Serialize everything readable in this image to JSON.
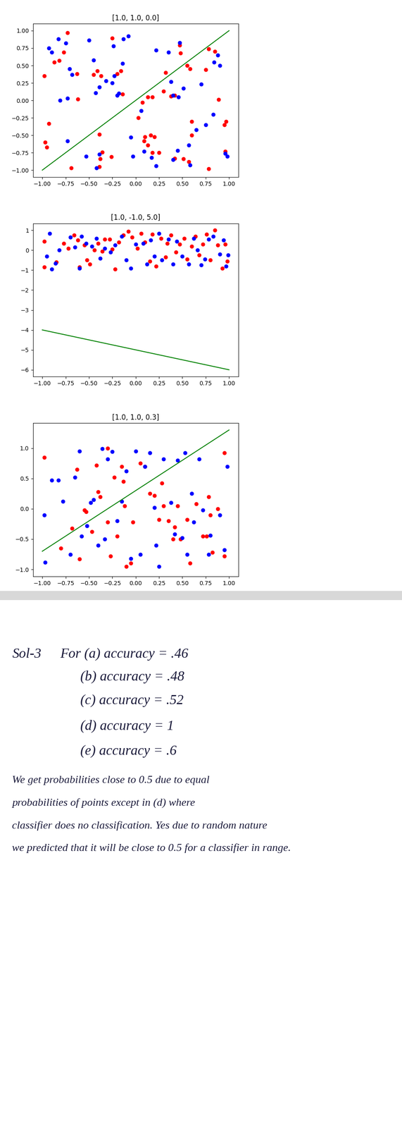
{
  "chart_data": [
    {
      "type": "scatter",
      "title": "[1.0, 1.0, 0.0]",
      "xlim": [
        -1.1,
        1.1
      ],
      "ylim": [
        -1.1,
        1.1
      ],
      "xticks": [
        {
          "value": -1,
          "label": "−1.00"
        },
        {
          "value": -0.75,
          "label": "−0.75"
        },
        {
          "value": -0.5,
          "label": "−0.50"
        },
        {
          "value": -0.25,
          "label": "−0.25"
        },
        {
          "value": 0,
          "label": "0.00"
        },
        {
          "value": 0.25,
          "label": "0.25"
        },
        {
          "value": 0.5,
          "label": "0.50"
        },
        {
          "value": 0.75,
          "label": "0.75"
        },
        {
          "value": 1,
          "label": "1.00"
        }
      ],
      "yticks": [
        {
          "value": -1,
          "label": "−1.00"
        },
        {
          "value": -0.75,
          "label": "−0.75"
        },
        {
          "value": -0.5,
          "label": "−0.50"
        },
        {
          "value": -0.25,
          "label": "−0.25"
        },
        {
          "value": 0,
          "label": "0.00"
        },
        {
          "value": 0.25,
          "label": "0.25"
        },
        {
          "value": 0.5,
          "label": "0.50"
        },
        {
          "value": 0.75,
          "label": "0.75"
        },
        {
          "value": 1,
          "label": "1.00"
        }
      ],
      "series": [
        {
          "type": "scatter",
          "color": "red",
          "marker": "circle",
          "x": [
            -0.98,
            -0.73,
            -0.77,
            -0.82,
            -0.87,
            -0.93,
            -0.97,
            -0.95,
            -0.69,
            -0.62,
            -0.63,
            -0.45,
            -0.41,
            -0.37,
            -0.2,
            -0.25,
            -0.16,
            -0.14,
            -0.39,
            -0.36,
            -0.38,
            -0.39,
            -0.26,
            0.03,
            0.07,
            0.1,
            0.09,
            0.13,
            0.16,
            0.2,
            0.18,
            0.25,
            0.13,
            0.18,
            0.32,
            0.3,
            0.38,
            0.42,
            0.47,
            0.48,
            0.55,
            0.58,
            0.42,
            0.51,
            0.57,
            0.6,
            0.6,
            0.78,
            0.85,
            0.75,
            0.89,
            0.95,
            0.97,
            0.96,
            0.78
          ],
          "values": [
            0.35,
            0.97,
            0.69,
            0.57,
            0.55,
            -0.33,
            -0.6,
            -0.67,
            -0.97,
            0.02,
            0.38,
            0.37,
            0.42,
            0.35,
            0.38,
            0.89,
            0.42,
            0.09,
            -0.49,
            -0.74,
            -0.84,
            -0.95,
            -0.81,
            -0.25,
            -0.03,
            -0.52,
            -0.58,
            -0.64,
            -0.5,
            -0.52,
            -0.75,
            -0.75,
            0.05,
            0.05,
            0.4,
            0.13,
            0.06,
            0.07,
            0.79,
            0.68,
            0.5,
            0.45,
            -0.83,
            -0.84,
            -0.88,
            -0.3,
            -0.5,
            0.74,
            0.7,
            0.44,
            0.01,
            -0.35,
            -0.3,
            -0.73,
            -0.98
          ]
        },
        {
          "type": "scatter",
          "color": "blue",
          "marker": "circle",
          "x": [
            -0.93,
            -0.9,
            -0.83,
            -0.75,
            -0.81,
            -0.73,
            -0.71,
            -0.68,
            -0.73,
            -0.5,
            -0.45,
            -0.43,
            -0.39,
            -0.32,
            -0.25,
            -0.23,
            -0.2,
            -0.18,
            -0.14,
            -0.13,
            -0.08,
            -0.24,
            -0.53,
            -0.39,
            -0.42,
            -0.05,
            -0.03,
            0.06,
            0.09,
            0.17,
            0.22,
            0.22,
            0.35,
            0.38,
            0.4,
            0.47,
            0.46,
            0.51,
            0.45,
            0.4,
            0.58,
            0.57,
            0.65,
            0.7,
            0.75,
            0.83,
            0.84,
            0.88,
            0.9,
            0.96,
            0.98
          ],
          "values": [
            0.75,
            0.69,
            0.88,
            0.82,
            0.0,
            0.03,
            0.45,
            0.37,
            -0.58,
            0.86,
            0.58,
            0.11,
            0.19,
            0.28,
            0.25,
            0.35,
            0.07,
            0.1,
            0.53,
            0.88,
            0.92,
            0.78,
            -0.8,
            -0.77,
            -0.97,
            -0.53,
            -0.8,
            -0.15,
            -0.73,
            -0.82,
            -0.94,
            0.72,
            0.69,
            0.27,
            0.07,
            0.83,
            0.05,
            0.17,
            -0.72,
            -0.85,
            -0.93,
            -0.64,
            -0.42,
            0.23,
            -0.35,
            -0.2,
            0.55,
            0.65,
            0.5,
            -0.76,
            -0.8
          ]
        },
        {
          "type": "line",
          "color": "green",
          "x": [
            -1,
            1
          ],
          "values": [
            -1,
            1
          ]
        }
      ]
    },
    {
      "type": "scatter",
      "title": "[1.0, -1.0, 5.0]",
      "xlim": [
        -1.1,
        1.1
      ],
      "ylim": [
        -6.35,
        1.35
      ],
      "xticks": [
        {
          "value": -1,
          "label": "−1.00"
        },
        {
          "value": -0.75,
          "label": "−0.75"
        },
        {
          "value": -0.5,
          "label": "−0.50"
        },
        {
          "value": -0.25,
          "label": "−0.25"
        },
        {
          "value": 0,
          "label": "0.00"
        },
        {
          "value": 0.25,
          "label": "0.25"
        },
        {
          "value": 0.5,
          "label": "0.50"
        },
        {
          "value": 0.75,
          "label": "0.75"
        },
        {
          "value": 1,
          "label": "1.00"
        }
      ],
      "yticks": [
        {
          "value": -6,
          "label": "−6"
        },
        {
          "value": -5,
          "label": "−5"
        },
        {
          "value": -4,
          "label": "−4"
        },
        {
          "value": -3,
          "label": "−3"
        },
        {
          "value": -2,
          "label": "−2"
        },
        {
          "value": -1,
          "label": "−1"
        },
        0,
        1
      ],
      "series": [
        {
          "type": "scatter",
          "color": "red",
          "marker": "circle",
          "x": [
            -0.98,
            -0.98,
            -0.85,
            -0.77,
            -0.72,
            -0.66,
            -0.62,
            -0.6,
            -0.55,
            -0.52,
            -0.49,
            -0.44,
            -0.4,
            -0.36,
            -0.33,
            -0.28,
            -0.25,
            -0.22,
            -0.18,
            -0.13,
            -0.08,
            -0.04,
            0.02,
            0.06,
            0.1,
            0.15,
            0.18,
            0.22,
            0.27,
            0.32,
            0.34,
            0.38,
            0.43,
            0.47,
            0.52,
            0.55,
            0.6,
            0.64,
            0.68,
            0.72,
            0.76,
            0.8,
            0.85,
            0.88,
            0.93,
            0.96,
            0.98
          ],
          "values": [
            0.45,
            -0.85,
            -0.6,
            0.35,
            0.1,
            0.75,
            0.5,
            -0.85,
            0.25,
            -0.5,
            -0.7,
            0.0,
            0.35,
            -0.05,
            0.55,
            0.55,
            0.05,
            -0.95,
            0.4,
            0.75,
            0.95,
            0.65,
            0.1,
            0.85,
            0.4,
            -0.55,
            0.8,
            -0.8,
            0.6,
            -0.35,
            0.35,
            0.75,
            -0.1,
            0.3,
            0.6,
            -0.45,
            0.2,
            0.7,
            -0.25,
            0.3,
            0.8,
            -0.5,
            1.0,
            0.25,
            -0.9,
            0.3,
            -0.55
          ]
        },
        {
          "type": "scatter",
          "color": "blue",
          "marker": "circle",
          "x": [
            -0.95,
            -0.92,
            -0.9,
            -0.86,
            -0.82,
            -0.7,
            -0.65,
            -0.6,
            -0.58,
            -0.53,
            -0.47,
            -0.42,
            -0.38,
            -0.33,
            -0.27,
            -0.22,
            -0.15,
            -0.1,
            -0.05,
            0.0,
            0.08,
            0.12,
            0.16,
            0.2,
            0.25,
            0.28,
            0.35,
            0.4,
            0.44,
            0.5,
            0.57,
            0.62,
            0.66,
            0.7,
            0.74,
            0.78,
            0.83,
            0.9,
            0.94,
            0.97,
            0.99
          ],
          "values": [
            -0.3,
            0.85,
            -0.95,
            -0.65,
            0.0,
            0.65,
            0.15,
            -0.9,
            0.7,
            0.35,
            0.2,
            0.6,
            -0.4,
            0.1,
            -0.1,
            0.25,
            0.7,
            -0.5,
            -0.9,
            0.3,
            0.35,
            -0.7,
            0.5,
            -0.3,
            0.85,
            -0.5,
            0.55,
            -0.7,
            0.45,
            -0.3,
            -0.7,
            0.6,
            0.0,
            -0.75,
            -0.45,
            0.55,
            0.7,
            -0.2,
            0.5,
            -0.8,
            -0.25
          ]
        },
        {
          "type": "line",
          "color": "green",
          "x": [
            -1,
            1
          ],
          "values": [
            -4,
            -6
          ]
        }
      ]
    },
    {
      "type": "scatter",
      "title": "[1.0, 1.0, 0.3]",
      "xlim": [
        -1.1,
        1.1
      ],
      "ylim": [
        -1.115,
        1.415
      ],
      "xticks": [
        {
          "value": -1,
          "label": "−1.00"
        },
        {
          "value": -0.75,
          "label": "−0.75"
        },
        {
          "value": -0.5,
          "label": "−0.50"
        },
        {
          "value": -0.25,
          "label": "−0.25"
        },
        {
          "value": 0,
          "label": "0.00"
        },
        {
          "value": 0.25,
          "label": "0.25"
        },
        {
          "value": 0.5,
          "label": "0.50"
        },
        {
          "value": 0.75,
          "label": "0.75"
        },
        {
          "value": 1,
          "label": "1.00"
        }
      ],
      "yticks": [
        {
          "value": -1,
          "label": "−1.0"
        },
        {
          "value": -0.5,
          "label": "−0.5"
        },
        {
          "value": 0,
          "label": "0.0"
        },
        {
          "value": 0.5,
          "label": "0.5"
        },
        {
          "value": 1,
          "label": "1.0"
        }
      ],
      "series": [
        {
          "type": "scatter",
          "color": "red",
          "marker": "circle",
          "x": [
            -0.98,
            -0.8,
            -0.68,
            -0.63,
            -0.6,
            -0.55,
            -0.53,
            -0.47,
            -0.42,
            -0.4,
            -0.38,
            -0.3,
            -0.3,
            -0.27,
            -0.23,
            -0.2,
            -0.15,
            -0.13,
            -0.12,
            -0.1,
            -0.05,
            -0.03,
            0.05,
            0.1,
            0.15,
            0.2,
            0.25,
            0.28,
            0.3,
            0.35,
            0.4,
            0.42,
            0.45,
            0.48,
            0.55,
            0.58,
            0.65,
            0.72,
            0.76,
            0.78,
            0.8,
            0.82,
            0.88,
            0.95,
            0.95
          ],
          "values": [
            0.85,
            -0.65,
            -0.32,
            0.65,
            -0.83,
            -0.02,
            -0.05,
            -0.38,
            0.72,
            0.28,
            0.2,
            1.0,
            -0.22,
            -0.78,
            0.52,
            -0.45,
            0.7,
            0.45,
            0.05,
            -0.95,
            -0.9,
            -0.22,
            0.75,
            0.7,
            0.25,
            0.22,
            -0.18,
            0.42,
            0.05,
            -0.2,
            -0.5,
            -0.3,
            0.05,
            -0.5,
            -0.18,
            -0.9,
            0.08,
            -0.45,
            -0.45,
            0.2,
            -0.1,
            -0.72,
            0.0,
            0.92,
            -0.78
          ]
        },
        {
          "type": "scatter",
          "color": "blue",
          "marker": "circle",
          "x": [
            -0.98,
            -0.97,
            -0.9,
            -0.83,
            -0.78,
            -0.7,
            -0.65,
            -0.6,
            -0.58,
            -0.52,
            -0.48,
            -0.45,
            -0.4,
            -0.36,
            -0.33,
            -0.3,
            -0.25,
            -0.2,
            -0.15,
            -0.1,
            -0.05,
            0.0,
            0.05,
            0.1,
            0.15,
            0.2,
            0.22,
            0.25,
            0.3,
            0.38,
            0.42,
            0.45,
            0.5,
            0.53,
            0.55,
            0.6,
            0.62,
            0.68,
            0.72,
            0.78,
            0.8,
            0.9,
            0.95,
            0.98
          ],
          "values": [
            -0.1,
            -0.88,
            0.47,
            0.47,
            0.12,
            -0.75,
            0.52,
            0.95,
            -0.45,
            -0.28,
            0.1,
            0.15,
            -0.6,
            0.99,
            -0.5,
            0.82,
            0.94,
            -0.2,
            0.12,
            0.62,
            -0.82,
            0.95,
            -0.75,
            0.7,
            0.92,
            0.02,
            -0.6,
            -0.95,
            0.82,
            0.1,
            -0.42,
            0.8,
            -0.48,
            0.92,
            -0.75,
            0.25,
            -0.22,
            0.82,
            -0.02,
            -0.75,
            -0.44,
            -0.1,
            -0.68,
            0.7
          ]
        },
        {
          "type": "line",
          "color": "green",
          "x": [
            -1,
            1
          ],
          "values": [
            -0.7,
            1.3
          ]
        }
      ]
    }
  ],
  "note": {
    "heading": "Sol-3",
    "lines": [
      "For (a) accuracy = .46",
      "(b) accuracy = .48",
      "(c) accuracy = .52",
      "(d) accuracy = 1",
      "(e) accuracy = .6"
    ],
    "paragraph": [
      "We get probabilities close to 0.5 due to equal",
      "probabilities of points except in (d) where",
      "classifier does no classification. Yes due to random nature",
      "we predicted that it will be close to 0.5 for a classifier in range."
    ]
  }
}
